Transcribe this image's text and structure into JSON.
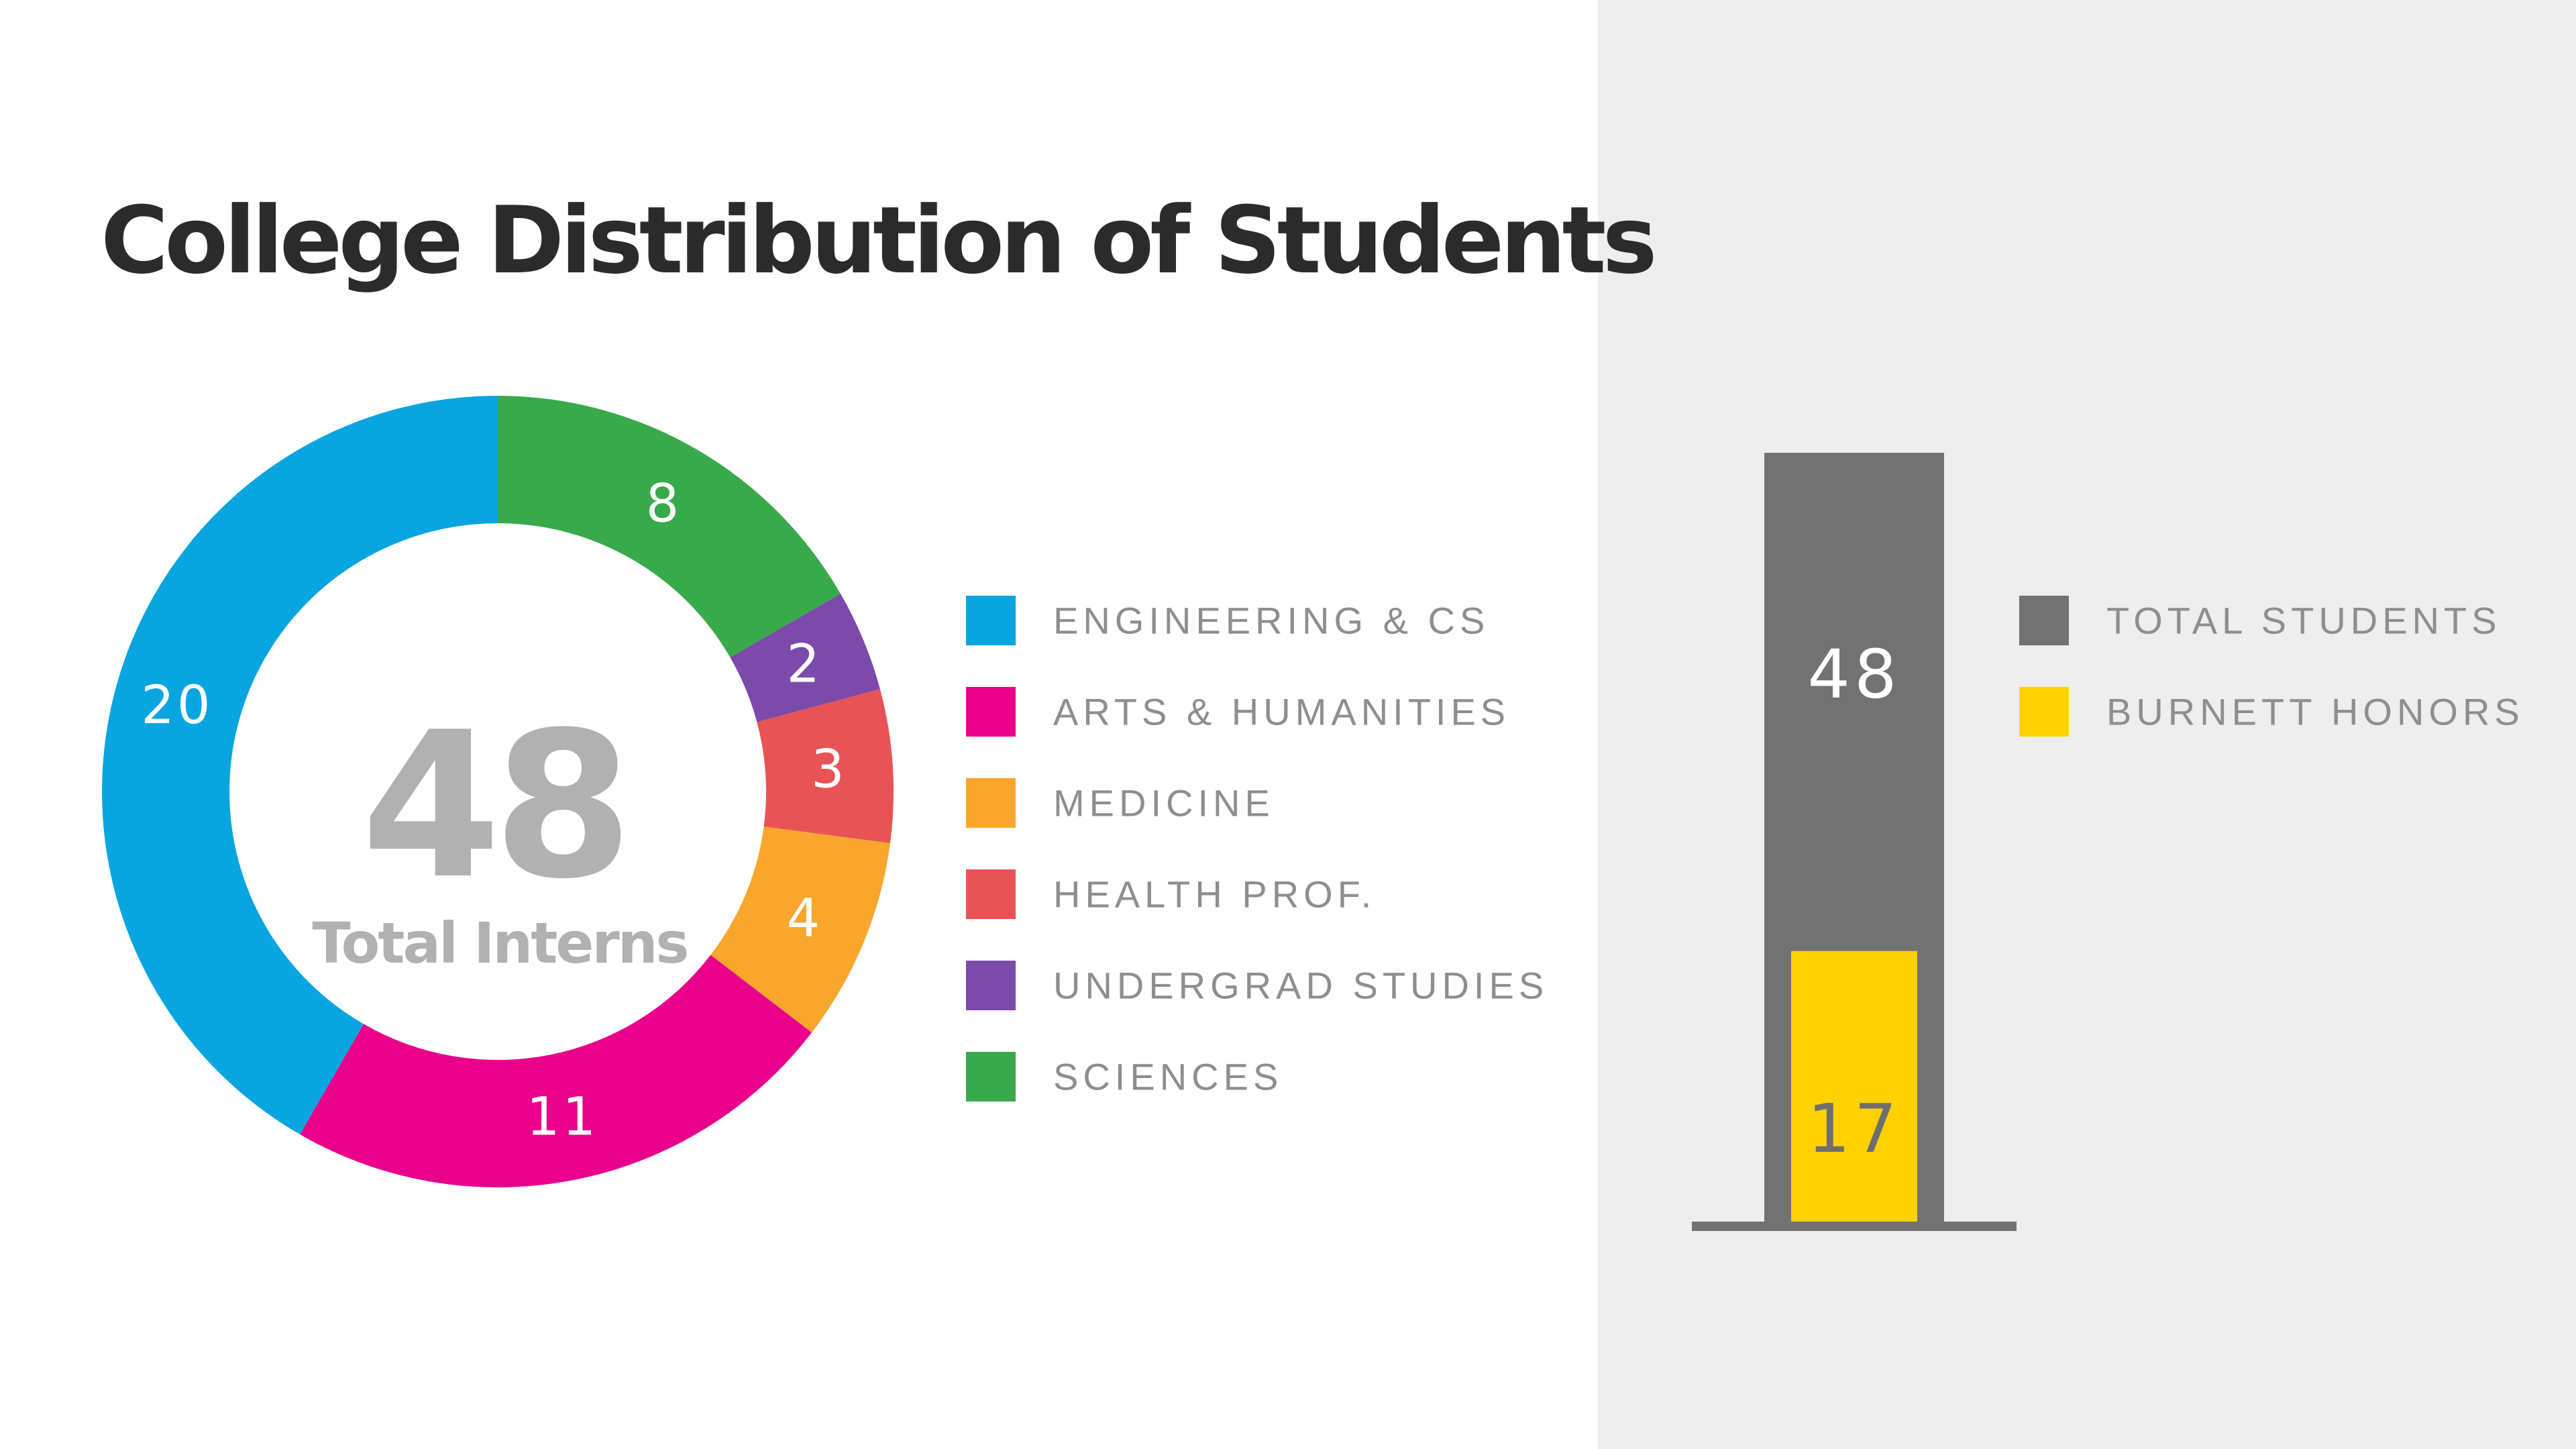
{
  "title": "College Distribution of Students",
  "chart_data": [
    {
      "type": "pie",
      "center_value": "48",
      "center_label": "Total Interns",
      "slices": [
        {
          "label": "SCIENCES",
          "value": 8,
          "color": "#39aa4b"
        },
        {
          "label": "UNDERGRAD STUDIES",
          "value": 2,
          "color": "#7b4aab"
        },
        {
          "label": "HEALTH PROF.",
          "value": 3,
          "color": "#e85455"
        },
        {
          "label": "MEDICINE",
          "value": 4,
          "color": "#f9a62d"
        },
        {
          "label": "ARTS & HUMANITIES",
          "value": 11,
          "color": "#e9008b"
        },
        {
          "label": "ENGINEERING & CS",
          "value": 20,
          "color": "#09a5e0"
        }
      ],
      "legend": [
        "ENGINEERING & CS",
        "ARTS & HUMANITIES",
        "MEDICINE",
        "HEALTH PROF.",
        "UNDERGRAD STUDIES",
        "SCIENCES"
      ],
      "legend_placement": "right"
    },
    {
      "type": "bar",
      "series": [
        {
          "name": "TOTAL STUDENTS",
          "value": 48,
          "color": "#727272"
        },
        {
          "name": "BURNETT HONORS",
          "value": 17,
          "color": "#fed200"
        }
      ],
      "ylim": [
        0,
        48
      ],
      "legend_placement": "right"
    }
  ]
}
